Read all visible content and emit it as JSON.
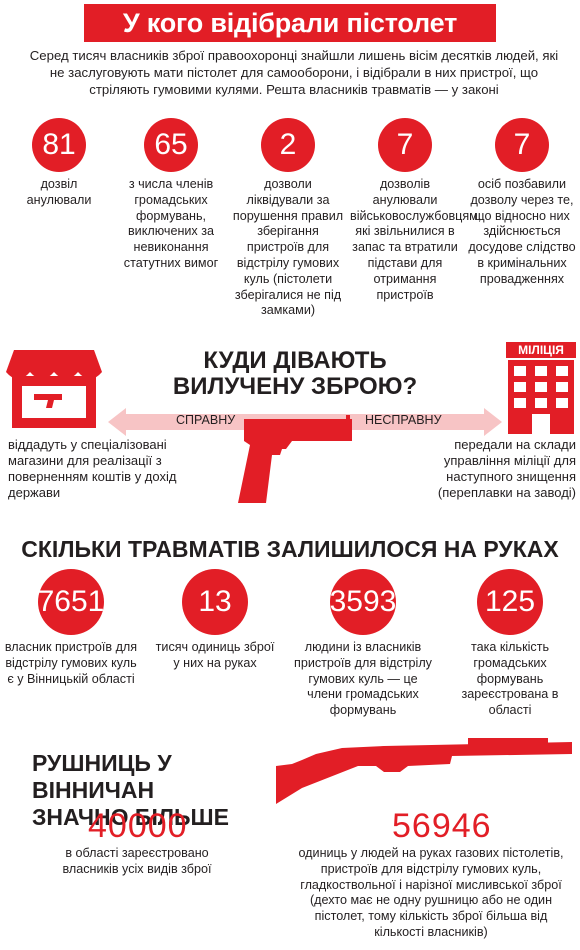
{
  "title": "У кого відібрали пістолет",
  "intro": "Серед тисяч власників зброї правоохоронці знайшли лишень вісім десятків людей, які не заслуговують мати пістолет для самооборони, і відібрали в них пристрої, що стріляють гумовими кулями. Решта власників травматів — у законі",
  "stats1": [
    {
      "value": "81",
      "text": "дозвіл анулювали"
    },
    {
      "value": "65",
      "text": "з числа членів громадських формувань, виключених за невиконання статутних вимог"
    },
    {
      "value": "2",
      "text": "дозволи ліквідували за порушення правил зберігання пристроїв для відстрілу гумових куль (пістолети зберігалися не під замками)"
    },
    {
      "value": "7",
      "text": "дозволів анулювали військовослужбовцям, які звільнилися в запас та втратили підстави для отримання пристроїв"
    },
    {
      "value": "7",
      "text": "осіб позбавили дозволу через те, що відносно них здійснюється досудове слідство в кримінальних провадженнях"
    }
  ],
  "where": {
    "heading_line1": "КУДИ ДІВАЮТЬ",
    "heading_line2": "ВИЛУЧЕНУ ЗБРОЮ?",
    "left_label": "СПРАВНУ",
    "right_label": "НЕСПРАВНУ",
    "police_sign": "МІЛІЦІЯ",
    "left_text": "віддадуть у спеціалізовані магазини для реалізації з поверненням коштів у дохід держави",
    "right_text": "передали на склади управління міліції для наступного знищення (переплавки на заводі)"
  },
  "remain": {
    "heading": "СКІЛЬКИ ТРАВМАТІВ ЗАЛИШИЛОСЯ НА РУКАХ",
    "stats": [
      {
        "value": "7651",
        "text": "власник пристроїв для відстрілу гумових куль є у Вінницькій області"
      },
      {
        "value": "13",
        "text": "тисяч одиниць зброї у них на руках"
      },
      {
        "value": "3593",
        "text": "людини із власників пристроїв для відстрілу гумових куль — це члени громадських формувань"
      },
      {
        "value": "125",
        "text": "така кількість громадських формувань зареєстрована в області"
      }
    ]
  },
  "rifles": {
    "heading_line1": "РУШНИЦЬ У ВІННИЧАН",
    "heading_line2": "ЗНАЧНО БІЛЬШЕ",
    "left_value": "40000",
    "left_text": "в області зареєстровано власників усіх видів зброї",
    "right_value": "56946",
    "right_text": "одиниць у людей на руках газових пістолетів, пристроїв для відстрілу гумових куль, гладкоствольної і нарізної мисливської зброї (дехто має не одну рушницю або не один пістолет, тому кількість зброї більша від кількості власників)"
  },
  "colors": {
    "accent": "#e21e26",
    "light_accent": "#f2a9ab",
    "text": "#231f20"
  }
}
